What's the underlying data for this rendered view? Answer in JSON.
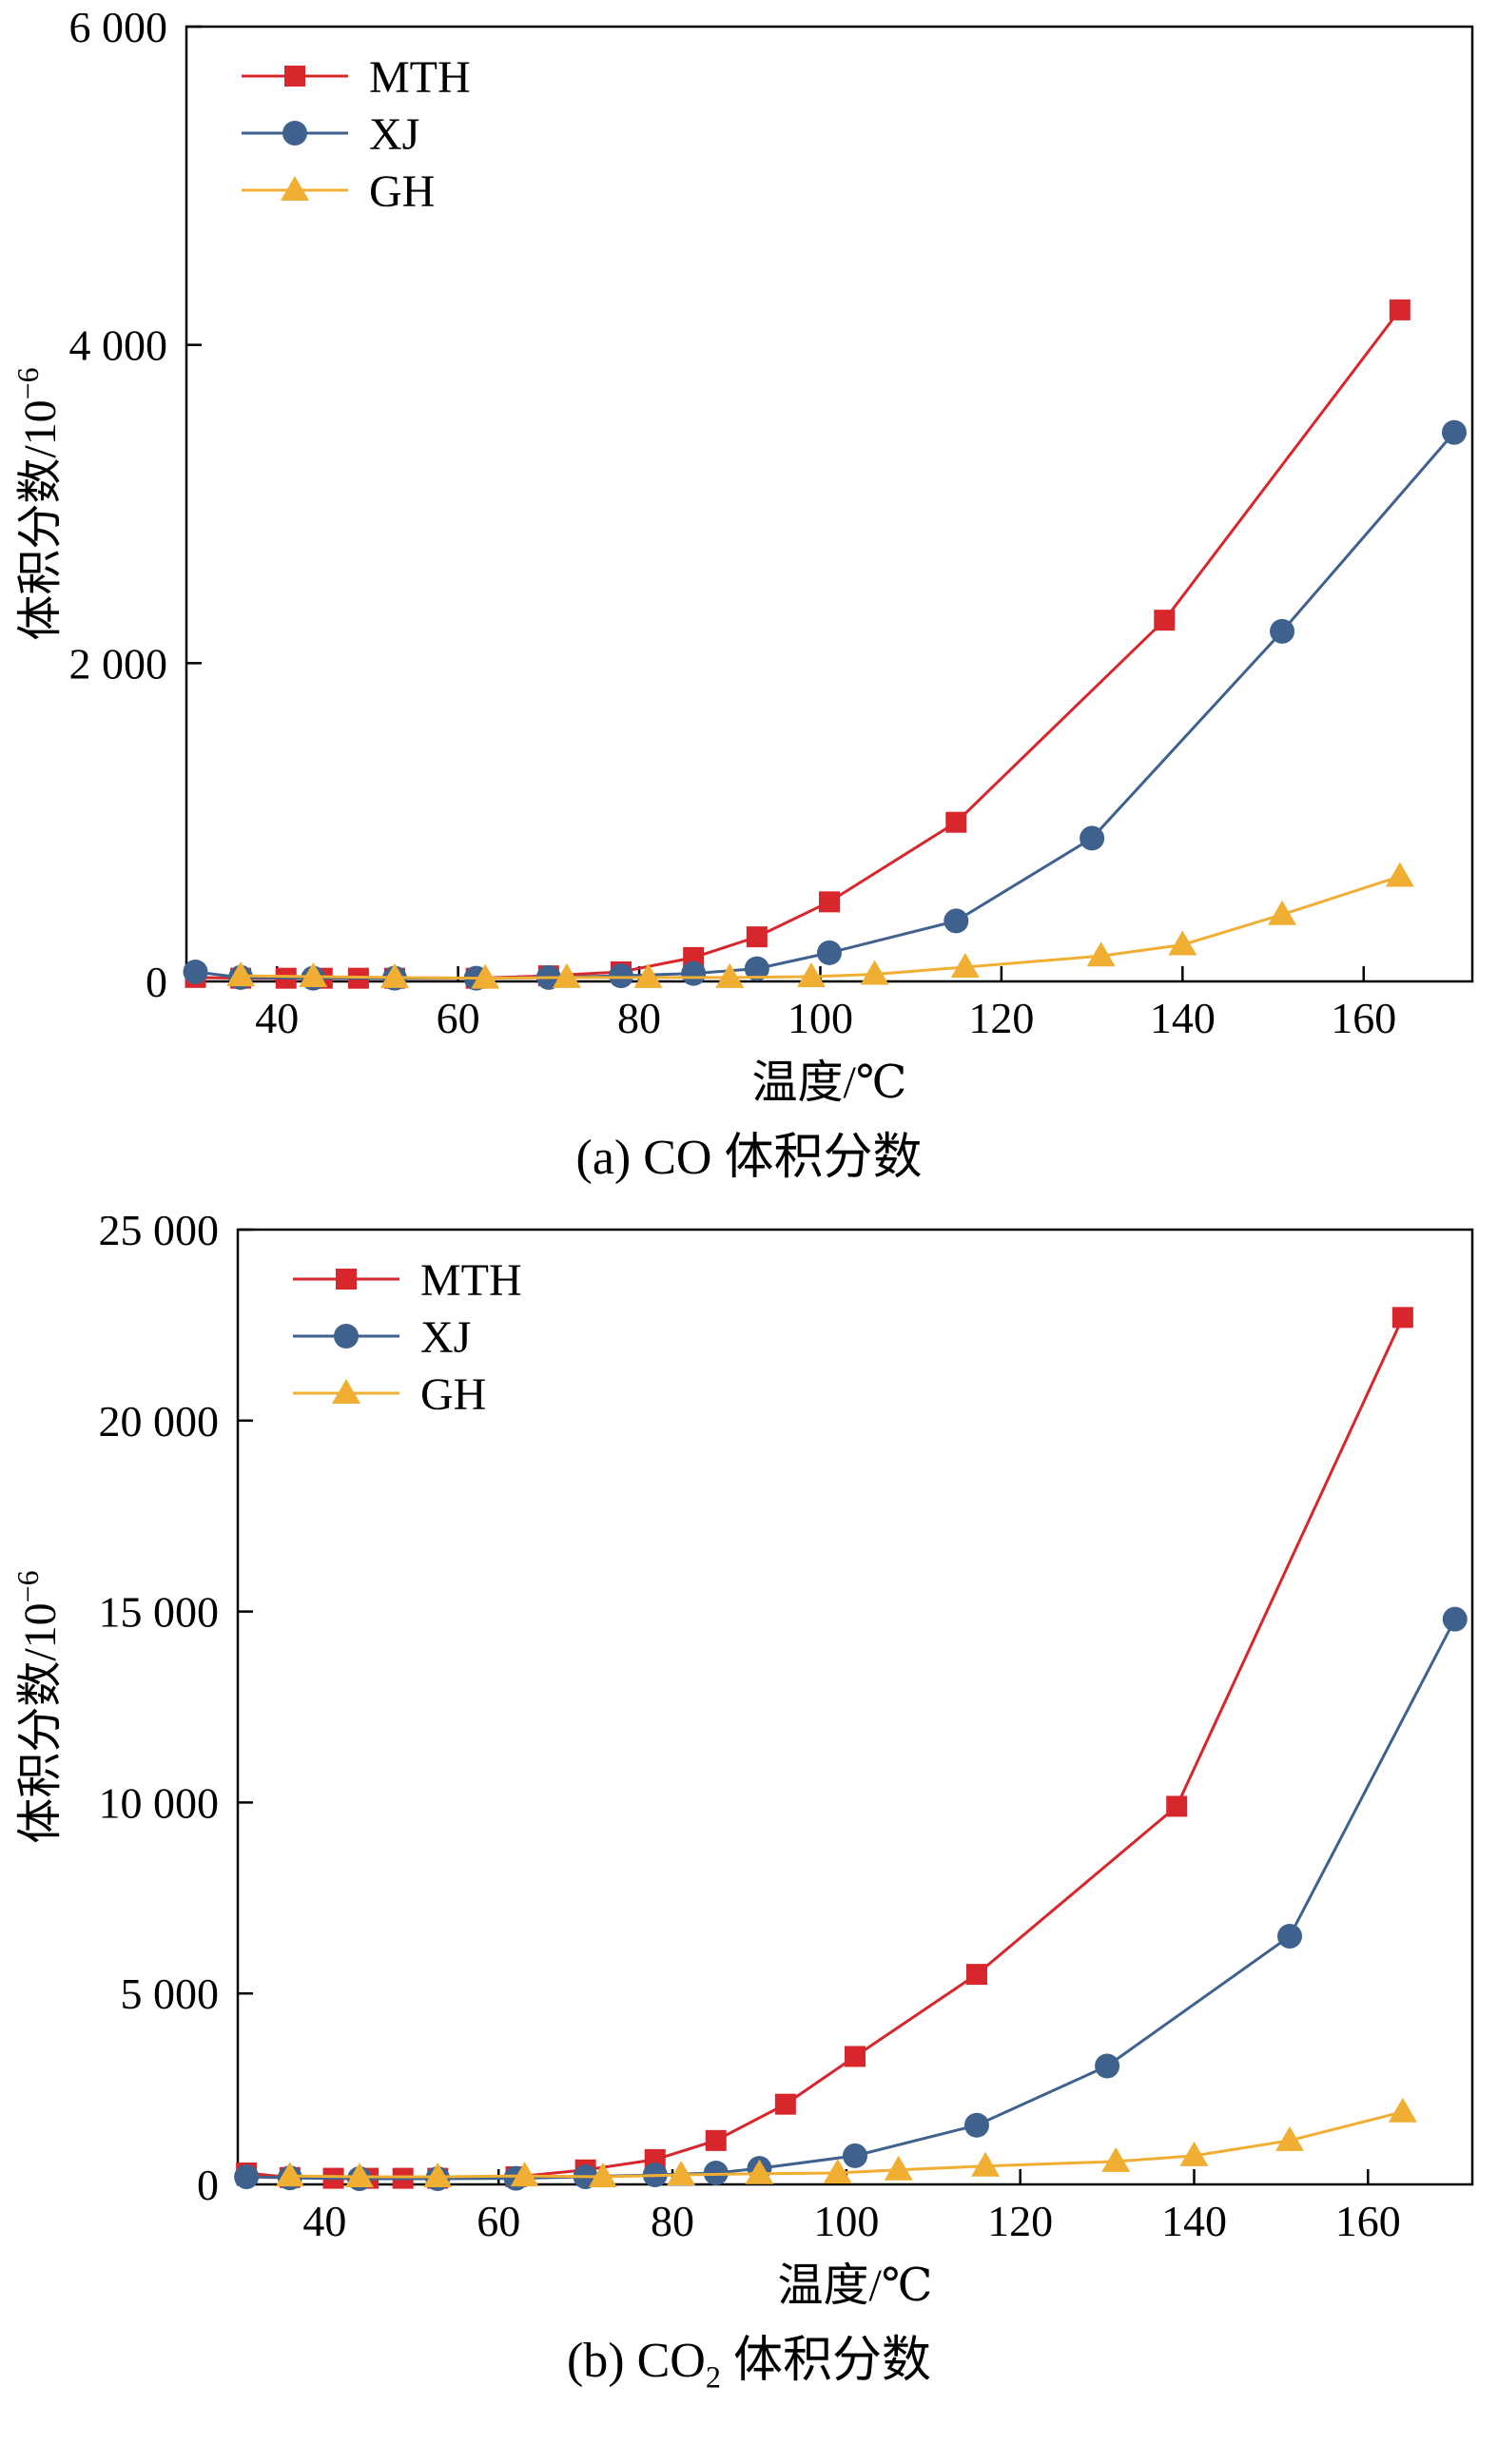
{
  "colors": {
    "background": "#ffffff",
    "axis": "#000000",
    "text": "#000000",
    "mth_red": "#d7262c",
    "xj_blue": "#3e618e",
    "gh_yellow": "#f0af33"
  },
  "chart_data": [
    {
      "type": "line",
      "caption_pre": "(a) CO ",
      "caption_sub": "",
      "caption_post": "体积分数",
      "xlabel": "温度/℃",
      "ylabel_base": "体积分数/10",
      "ylabel_sup": "−6",
      "xlim": [
        30,
        172
      ],
      "ylim": [
        0,
        6000
      ],
      "xticks": [
        40,
        60,
        80,
        100,
        120,
        140,
        160
      ],
      "yticks": [
        0,
        2000,
        4000,
        6000
      ],
      "ytick_labels": [
        "0",
        "2 000",
        "4 000",
        "6 000"
      ],
      "grid": false,
      "legend_position": "top-left",
      "series": [
        {
          "name": "MTH",
          "marker": "square",
          "color": "#d7262c",
          "points": [
            [
              31,
              25
            ],
            [
              36,
              20
            ],
            [
              41,
              20
            ],
            [
              45,
              20
            ],
            [
              49,
              20
            ],
            [
              53,
              20
            ],
            [
              62,
              20
            ],
            [
              70,
              35
            ],
            [
              78,
              60
            ],
            [
              86,
              150
            ],
            [
              93,
              280
            ],
            [
              101,
              500
            ],
            [
              115,
              1000
            ],
            [
              138,
              2270
            ],
            [
              164,
              4220
            ]
          ]
        },
        {
          "name": "XJ",
          "marker": "circle",
          "color": "#3e618e",
          "points": [
            [
              31,
              60
            ],
            [
              36,
              25
            ],
            [
              44,
              20
            ],
            [
              53,
              20
            ],
            [
              62,
              20
            ],
            [
              70,
              25
            ],
            [
              78,
              35
            ],
            [
              86,
              50
            ],
            [
              93,
              80
            ],
            [
              101,
              180
            ],
            [
              115,
              380
            ],
            [
              130,
              900
            ],
            [
              151,
              2200
            ],
            [
              170,
              3450
            ]
          ]
        },
        {
          "name": "GH",
          "marker": "triangle",
          "color": "#f0af33",
          "points": [
            [
              36,
              35
            ],
            [
              44,
              30
            ],
            [
              53,
              25
            ],
            [
              63,
              20
            ],
            [
              72,
              25
            ],
            [
              81,
              25
            ],
            [
              90,
              25
            ],
            [
              99,
              30
            ],
            [
              106,
              45
            ],
            [
              116,
              90
            ],
            [
              131,
              160
            ],
            [
              140,
              230
            ],
            [
              151,
              420
            ],
            [
              164,
              660
            ]
          ]
        }
      ]
    },
    {
      "type": "line",
      "caption_pre": "(b) CO",
      "caption_sub": "2",
      "caption_post": " 体积分数",
      "xlabel": "温度/℃",
      "ylabel_base": "体积分数/10",
      "ylabel_sup": "−6",
      "xlim": [
        30,
        172
      ],
      "ylim": [
        0,
        25000
      ],
      "xticks": [
        40,
        60,
        80,
        100,
        120,
        140,
        160
      ],
      "yticks": [
        0,
        5000,
        10000,
        15000,
        20000,
        25000
      ],
      "ytick_labels": [
        "0",
        "5 000",
        "10 000",
        "15 000",
        "20 000",
        "25 000"
      ],
      "grid": false,
      "legend_position": "top-left",
      "series": [
        {
          "name": "MTH",
          "marker": "square",
          "color": "#d7262c",
          "points": [
            [
              31,
              300
            ],
            [
              36,
              180
            ],
            [
              41,
              160
            ],
            [
              45,
              160
            ],
            [
              49,
              160
            ],
            [
              53,
              160
            ],
            [
              62,
              200
            ],
            [
              70,
              380
            ],
            [
              78,
              650
            ],
            [
              85,
              1150
            ],
            [
              93,
              2100
            ],
            [
              101,
              3350
            ],
            [
              115,
              5500
            ],
            [
              138,
              9900
            ],
            [
              164,
              22700
            ]
          ]
        },
        {
          "name": "XJ",
          "marker": "circle",
          "color": "#3e618e",
          "points": [
            [
              31,
              200
            ],
            [
              36,
              170
            ],
            [
              44,
              150
            ],
            [
              53,
              150
            ],
            [
              62,
              160
            ],
            [
              70,
              200
            ],
            [
              78,
              250
            ],
            [
              85,
              300
            ],
            [
              90,
              420
            ],
            [
              101,
              750
            ],
            [
              115,
              1550
            ],
            [
              130,
              3100
            ],
            [
              151,
              6500
            ],
            [
              170,
              14800
            ]
          ]
        },
        {
          "name": "GH",
          "marker": "triangle",
          "color": "#f0af33",
          "points": [
            [
              36,
              220
            ],
            [
              44,
              200
            ],
            [
              53,
              200
            ],
            [
              63,
              220
            ],
            [
              72,
              200
            ],
            [
              81,
              250
            ],
            [
              90,
              280
            ],
            [
              99,
              300
            ],
            [
              106,
              380
            ],
            [
              116,
              480
            ],
            [
              131,
              600
            ],
            [
              140,
              750
            ],
            [
              151,
              1150
            ],
            [
              164,
              1900
            ]
          ]
        }
      ]
    }
  ]
}
